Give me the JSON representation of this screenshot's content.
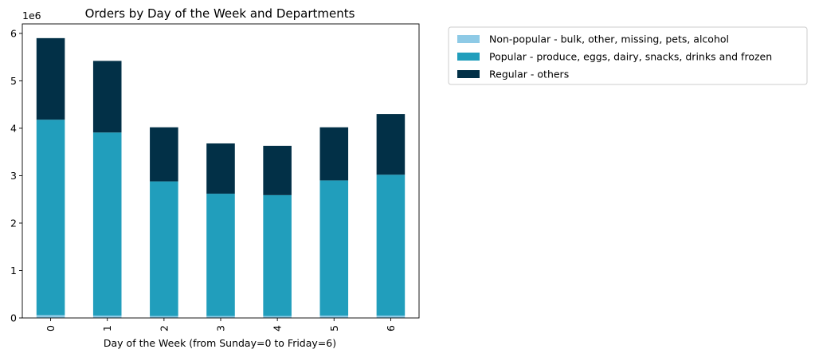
{
  "chart_data": {
    "type": "bar",
    "stacked": true,
    "title": "Orders by Day of the Week and Departments",
    "xlabel": "Day of the Week (from Sunday=0 to Friday=6)",
    "ylabel": "",
    "y_scale_label": "1e6",
    "categories": [
      "0",
      "1",
      "2",
      "3",
      "4",
      "5",
      "6"
    ],
    "ylim": [
      0,
      6.2
    ],
    "yticks": [
      "0",
      "1",
      "2",
      "3",
      "4",
      "5",
      "6"
    ],
    "grid": false,
    "legend_position": "outside-top-right",
    "series": [
      {
        "name": "Non-popular - bulk, other, missing, pets, alcohol",
        "color": "#8ecae6",
        "values": [
          0.06,
          0.05,
          0.04,
          0.04,
          0.04,
          0.05,
          0.05
        ]
      },
      {
        "name": "Popular - produce, eggs, dairy, snacks, drinks and frozen",
        "color": "#219ebc",
        "values": [
          4.12,
          3.86,
          2.84,
          2.58,
          2.55,
          2.85,
          2.97
        ]
      },
      {
        "name": "Regular - others",
        "color": "#023047",
        "values": [
          1.72,
          1.51,
          1.14,
          1.06,
          1.04,
          1.12,
          1.28
        ]
      }
    ]
  }
}
